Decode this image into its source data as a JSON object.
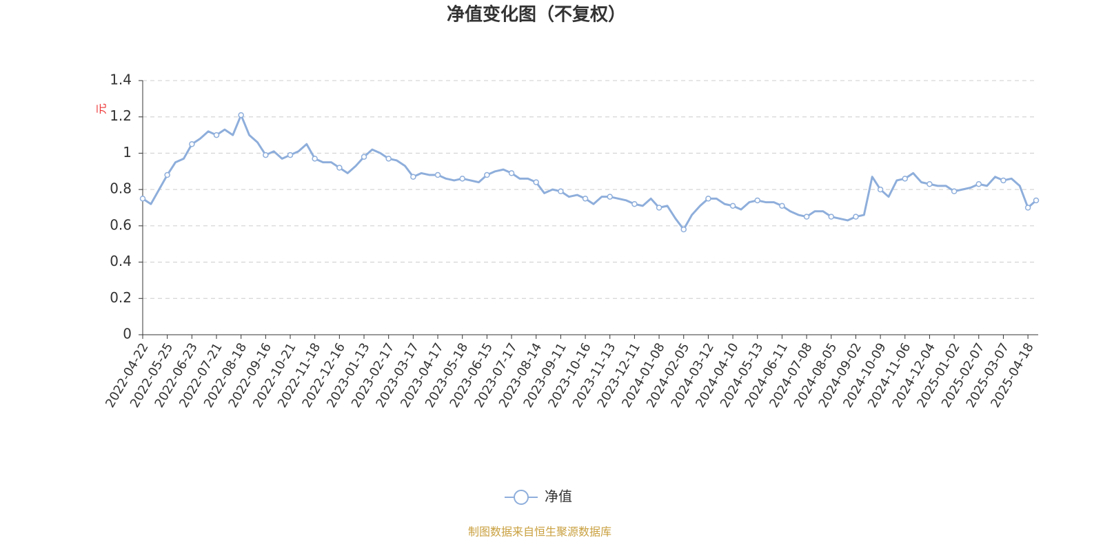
{
  "chart_data": {
    "type": "line",
    "title": "净值变化图（不复权）",
    "y_axis_label": "元",
    "source": "制图数据来自恒生聚源数据库",
    "categories": [
      "2022-04-22",
      null,
      null,
      "2022-05-25",
      null,
      null,
      "2022-06-23",
      null,
      null,
      "2022-07-21",
      null,
      null,
      "2022-08-18",
      null,
      null,
      "2022-09-16",
      null,
      null,
      "2022-10-21",
      null,
      null,
      "2022-11-18",
      null,
      null,
      "2022-12-16",
      null,
      null,
      "2023-01-13",
      null,
      null,
      "2023-02-17",
      null,
      null,
      "2023-03-17",
      null,
      null,
      "2023-04-17",
      null,
      null,
      "2023-05-18",
      null,
      null,
      "2023-06-15",
      null,
      null,
      "2023-07-17",
      null,
      null,
      "2023-08-14",
      null,
      null,
      "2023-09-11",
      null,
      null,
      "2023-10-16",
      null,
      null,
      "2023-11-13",
      null,
      null,
      "2023-12-11",
      null,
      null,
      "2024-01-08",
      null,
      null,
      "2024-02-05",
      null,
      null,
      "2024-03-12",
      null,
      null,
      "2024-04-10",
      null,
      null,
      "2024-05-13",
      null,
      null,
      "2024-06-11",
      null,
      null,
      "2024-07-08",
      null,
      null,
      "2024-08-05",
      null,
      null,
      "2024-09-02",
      null,
      null,
      "2024-10-09",
      null,
      null,
      "2024-11-06",
      null,
      null,
      "2024-12-04",
      null,
      null,
      "2025-01-02",
      null,
      null,
      "2025-02-07",
      null,
      null,
      "2025-03-07",
      null,
      null,
      "2025-04-18",
      null
    ],
    "series": [
      {
        "name": "净值",
        "color": "#8eaedb",
        "values": [
          0.75,
          0.72,
          0.8,
          0.88,
          0.95,
          0.97,
          1.05,
          1.08,
          1.12,
          1.1,
          1.13,
          1.1,
          1.21,
          1.1,
          1.06,
          0.99,
          1.01,
          0.97,
          0.99,
          1.01,
          1.05,
          0.97,
          0.95,
          0.95,
          0.92,
          0.89,
          0.93,
          0.98,
          1.02,
          1.0,
          0.97,
          0.96,
          0.93,
          0.87,
          0.89,
          0.88,
          0.88,
          0.86,
          0.85,
          0.86,
          0.85,
          0.84,
          0.88,
          0.9,
          0.91,
          0.89,
          0.86,
          0.86,
          0.84,
          0.78,
          0.8,
          0.79,
          0.76,
          0.77,
          0.75,
          0.72,
          0.76,
          0.76,
          0.75,
          0.74,
          0.72,
          0.71,
          0.75,
          0.7,
          0.71,
          0.64,
          0.58,
          0.66,
          0.71,
          0.75,
          0.75,
          0.72,
          0.71,
          0.69,
          0.73,
          0.74,
          0.73,
          0.73,
          0.71,
          0.68,
          0.66,
          0.65,
          0.68,
          0.68,
          0.65,
          0.64,
          0.63,
          0.65,
          0.66,
          0.87,
          0.8,
          0.76,
          0.85,
          0.86,
          0.89,
          0.84,
          0.83,
          0.82,
          0.82,
          0.79,
          0.8,
          0.81,
          0.83,
          0.82,
          0.87,
          0.85,
          0.86,
          0.82,
          0.7,
          0.74
        ]
      }
    ],
    "ylim": [
      0,
      1.4
    ],
    "yticks": [
      0,
      0.2,
      0.4,
      0.6,
      0.8,
      1,
      1.2,
      1.4
    ],
    "grid": true,
    "legend": "bottom"
  }
}
